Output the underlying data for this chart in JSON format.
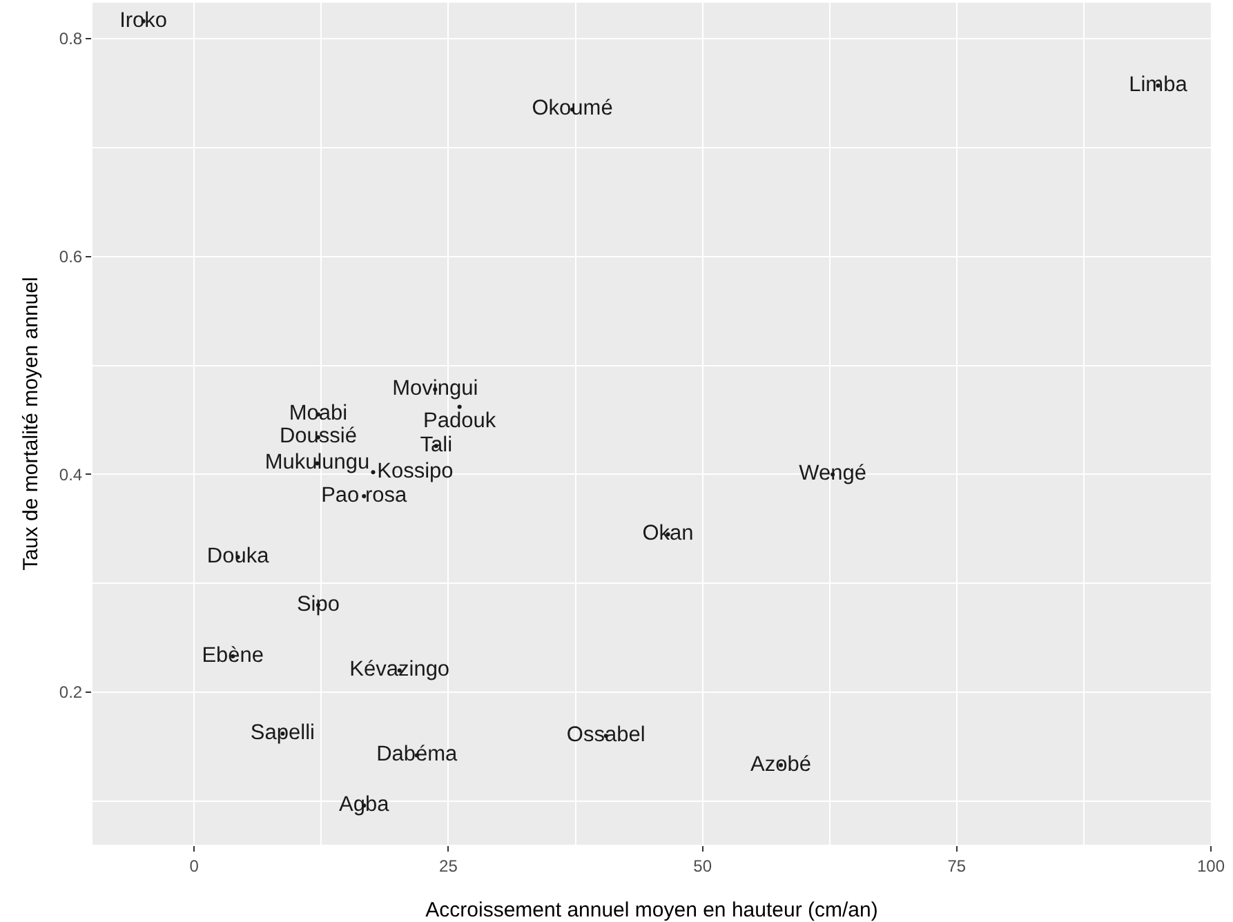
{
  "chart_data": {
    "type": "scatter",
    "xlabel": "Accroissement annuel moyen en hauteur (cm/an)",
    "ylabel": "Taux de mortalité moyen annuel",
    "x": [
      -5.0,
      37.2,
      94.8,
      23.7,
      26.1,
      12.2,
      12.2,
      23.8,
      12.1,
      17.6,
      62.8,
      16.7,
      46.6,
      4.3,
      12.2,
      3.8,
      20.2,
      8.7,
      40.5,
      21.9,
      57.7,
      16.7
    ],
    "values": [
      0.816,
      0.735,
      0.757,
      0.478,
      0.462,
      0.455,
      0.434,
      0.426,
      0.41,
      0.402,
      0.4,
      0.38,
      0.345,
      0.324,
      0.28,
      0.233,
      0.22,
      0.162,
      0.16,
      0.142,
      0.133,
      0.096
    ],
    "value_labels": [
      "Iroko",
      "Okoumé",
      "Limba",
      "Movingui",
      "Padouk",
      "Moabi",
      "Doussié",
      "Tali",
      "Mukulungu",
      "Kossipo",
      "Wengé",
      "Pao rosa",
      "Okan",
      "Douka",
      "Sipo",
      "Ebène",
      "Kévazingo",
      "Sapelli",
      "Ossabel",
      "Dabéma",
      "Azobé",
      "Agba"
    ],
    "color": "#1a1a1a",
    "marker": "circle",
    "xlim": [
      -10,
      100
    ],
    "ylim": [
      0.06,
      0.833
    ],
    "xticks": [
      0,
      25,
      50,
      75,
      100
    ],
    "yticks": [
      0.2,
      0.4,
      0.6,
      0.8
    ],
    "grid": true,
    "legend": false
  }
}
